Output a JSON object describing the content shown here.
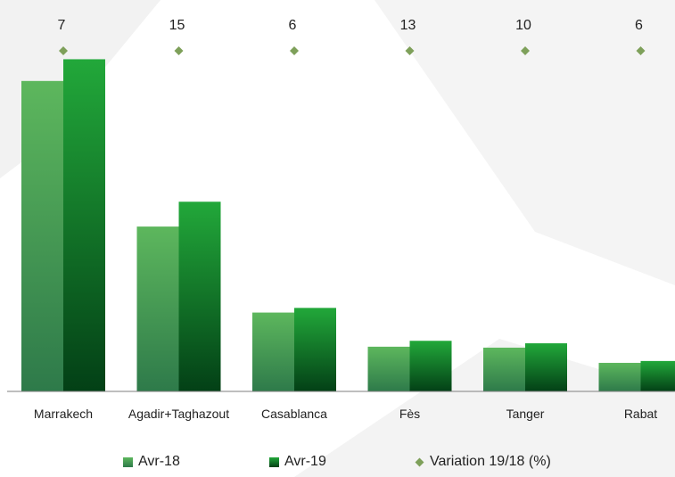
{
  "chart_data": {
    "type": "bar",
    "categories": [
      "Marrakech",
      "Agadir+Taghazout",
      "Casablanca",
      "Fès",
      "Tanger",
      "Rabat"
    ],
    "series": [
      {
        "name": "Avr-18",
        "values": [
          100,
          53.1,
          25.4,
          14.4,
          14.1,
          9.2
        ]
      },
      {
        "name": "Avr-19",
        "values": [
          107,
          61.1,
          26.9,
          16.3,
          15.5,
          9.8
        ]
      }
    ],
    "variation": {
      "name": "Variation 19/18 (%)",
      "values": [
        7,
        15,
        6,
        13,
        10,
        6
      ]
    },
    "ylim": [
      0,
      110
    ],
    "grid": false,
    "legend_position": "bottom",
    "colors": {
      "avr18_top": "#5db75d",
      "avr18_bottom": "#2e7a4a",
      "avr19_top": "#22a83a",
      "avr19_bottom": "#034016",
      "variation_marker": "#7ea05a",
      "axis": "#7f7f7f"
    }
  }
}
